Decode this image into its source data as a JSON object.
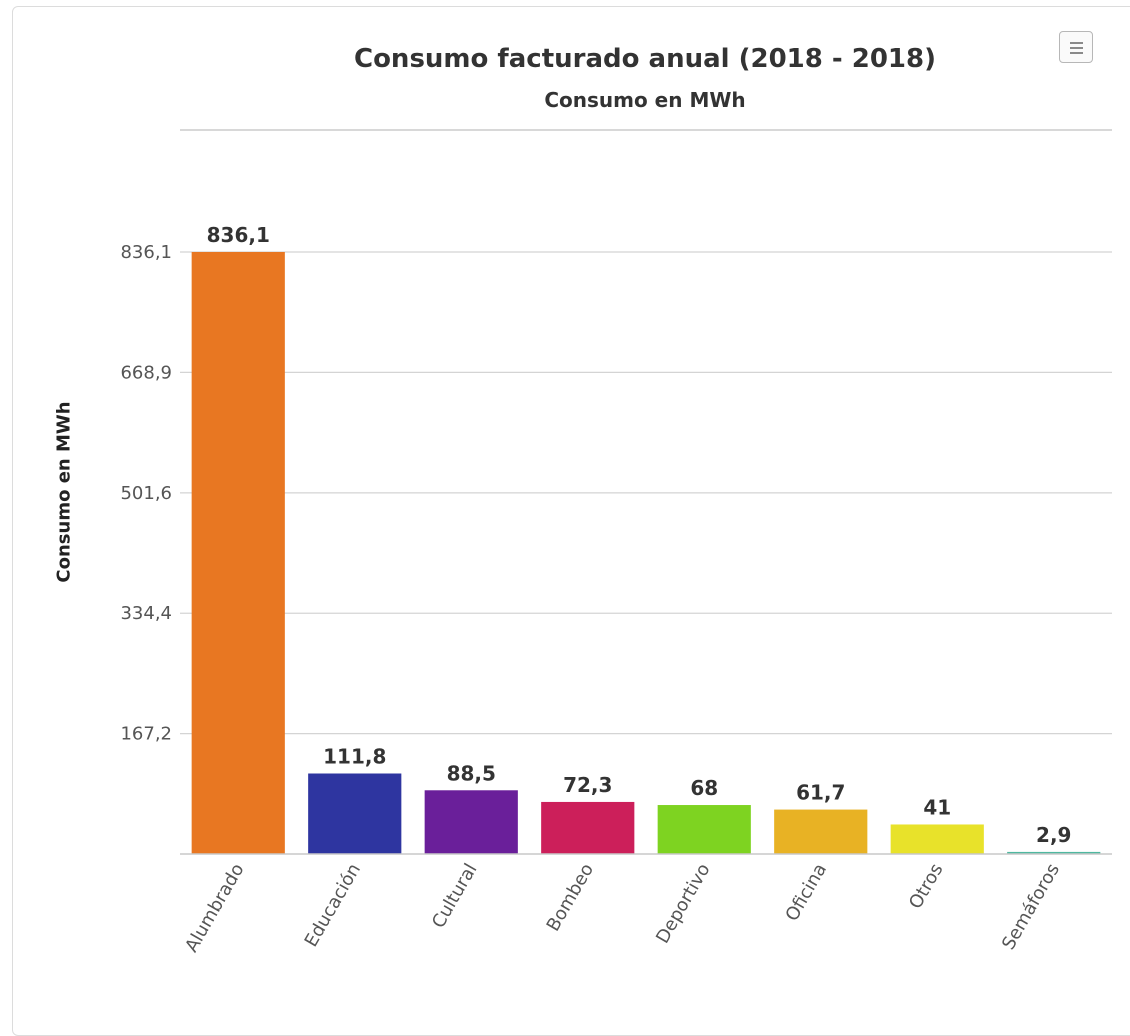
{
  "chart_data": {
    "type": "bar",
    "title": "Consumo facturado anual (2018 - 2018)",
    "subtitle": "Consumo en MWh",
    "xlabel": "",
    "ylabel": "Consumo en MWh",
    "categories": [
      "Alumbrado",
      "Educación",
      "Cultural",
      "Bombeo",
      "Deportivo",
      "Oficina",
      "Otros",
      "Semáforos"
    ],
    "values": [
      836.1,
      111.8,
      88.5,
      72.3,
      68,
      61.7,
      41,
      2.9
    ],
    "value_labels": [
      "836,1",
      "111,8",
      "88,5",
      "72,3",
      "68",
      "61,7",
      "41",
      "2,9"
    ],
    "colors": [
      "#e87722",
      "#2e35a0",
      "#6a1f9a",
      "#cc1f5a",
      "#7ed321",
      "#e8b224",
      "#e8e22a",
      "#4fb8a0"
    ],
    "y_ticks": [
      167.2,
      334.4,
      501.6,
      668.9,
      836.1
    ],
    "y_tick_labels": [
      "167,2",
      "334,4",
      "501,6",
      "668,9",
      "836,1"
    ],
    "ylim": [
      0,
      836.1
    ],
    "grid": true,
    "legend": "none"
  },
  "menu_button": {
    "icon": "hamburger-menu-icon"
  }
}
